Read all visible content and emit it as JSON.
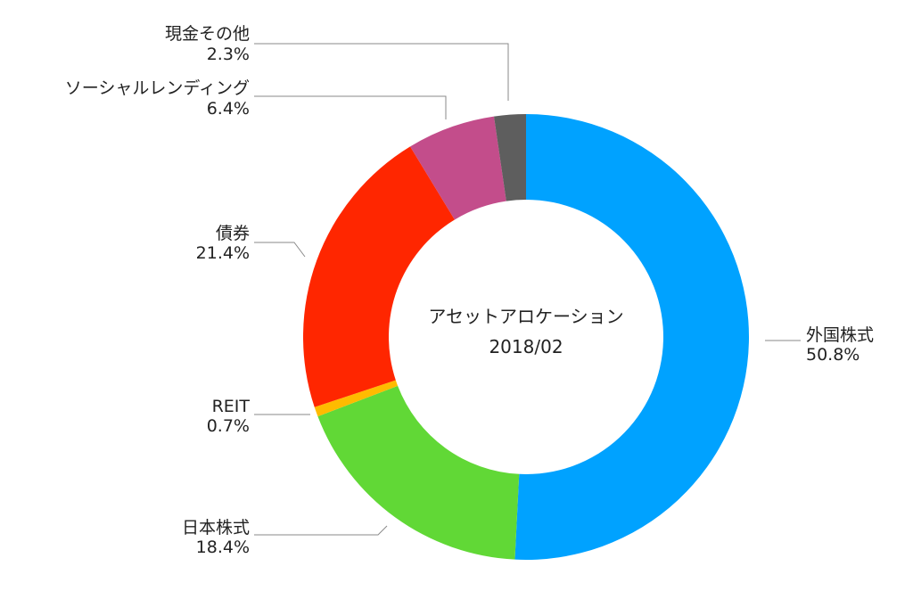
{
  "chart_data": {
    "type": "pie",
    "style": "donut",
    "title": "アセットアロケーション",
    "subtitle": "2018/02",
    "categories": [
      "外国株式",
      "日本株式",
      "REIT",
      "債券",
      "ソーシャルレンディング",
      "現金その他"
    ],
    "values": [
      50.8,
      18.4,
      0.7,
      21.4,
      6.4,
      2.3
    ],
    "value_labels": [
      "50.8%",
      "18.4%",
      "0.7%",
      "21.4%",
      "6.4%",
      "2.3%"
    ],
    "colors": [
      "#00a2ff",
      "#61d836",
      "#ffbb00",
      "#ff2600",
      "#c34d8b",
      "#5e5e5e"
    ],
    "start": "top",
    "direction": "clockwise",
    "legend": "none"
  }
}
